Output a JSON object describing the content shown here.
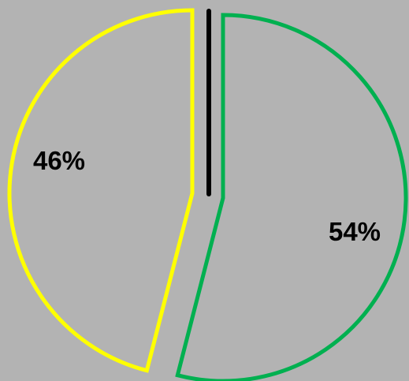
{
  "chart_data": {
    "type": "pie",
    "title": "",
    "slices": [
      {
        "label": "54%",
        "value": 54,
        "color": "#00b050"
      },
      {
        "label": "46%",
        "value": 46,
        "color": "#ffff00"
      }
    ],
    "divider_color": "#000000",
    "background_color": "#b3b3b3",
    "slice_fill": "none",
    "legend": "none"
  }
}
